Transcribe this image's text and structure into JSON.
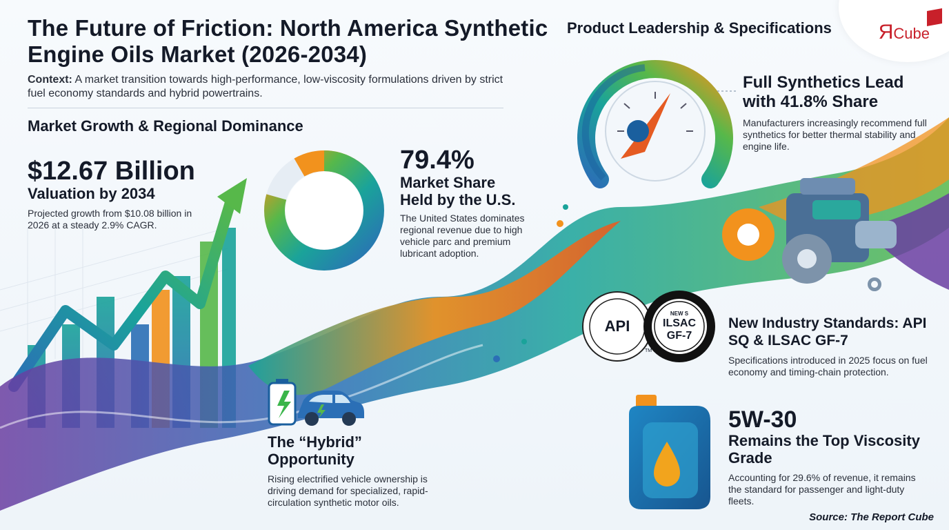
{
  "title": "The Future of Friction: North America Synthetic Engine Oils Market (2026-2034)",
  "context": {
    "label": "Context:",
    "text": "A market transition towards high-performance, low-viscosity formulations driven by strict fuel economy standards and hybrid powertrains."
  },
  "growth_section": {
    "heading": "Market Growth & Regional Dominance",
    "valuation": {
      "value": "$12.67 Billion",
      "label": "Valuation by 2034",
      "text": "Projected growth from $10.08 billion in 2026 at a steady 2.9% CAGR."
    },
    "share": {
      "value": "79.4%",
      "label": "Market Share Held by the U.S.",
      "fraction": 0.794,
      "text": "The United States dominates regional revenue due to high vehicle parc and premium lubricant adoption."
    }
  },
  "hybrid": {
    "heading": "The “Hybrid” Opportunity",
    "text": "Rising electrified vehicle ownership is driving demand for specialized, rapid-circulation synthetic motor oils."
  },
  "product_section": {
    "heading": "Product Leadership & Specifications",
    "synthetics": {
      "heading": "Full Synthetics Lead with 41.8% Share",
      "text": "Manufacturers increasingly recommend full synthetics for better thermal stability and engine life."
    },
    "standards": {
      "heading": "New Industry Standards: API SQ & ILSAC GF-7",
      "text": "Specifications introduced in 2025 focus on fuel economy and timing-chain protection.",
      "badge_api": "API",
      "badge_new": "NEW S",
      "badge_ilsac": "ILSAC",
      "badge_gf": "GF-7",
      "badge_tm": "TM"
    },
    "viscosity": {
      "value": "5W-30",
      "heading": "Remains the Top Viscosity Grade",
      "text": "Accounting for 29.6% of revenue, it remains the standard for passenger and light-duty fleets."
    }
  },
  "logo": {
    "r": "Я",
    "text": "Cube"
  },
  "source": "Source: The Report Cube",
  "colors": {
    "teal": "#1aa39a",
    "blue": "#2b6fb6",
    "purple": "#6a3ea1",
    "orange": "#f2921d",
    "green": "#57b84a",
    "red": "#c8202a"
  }
}
